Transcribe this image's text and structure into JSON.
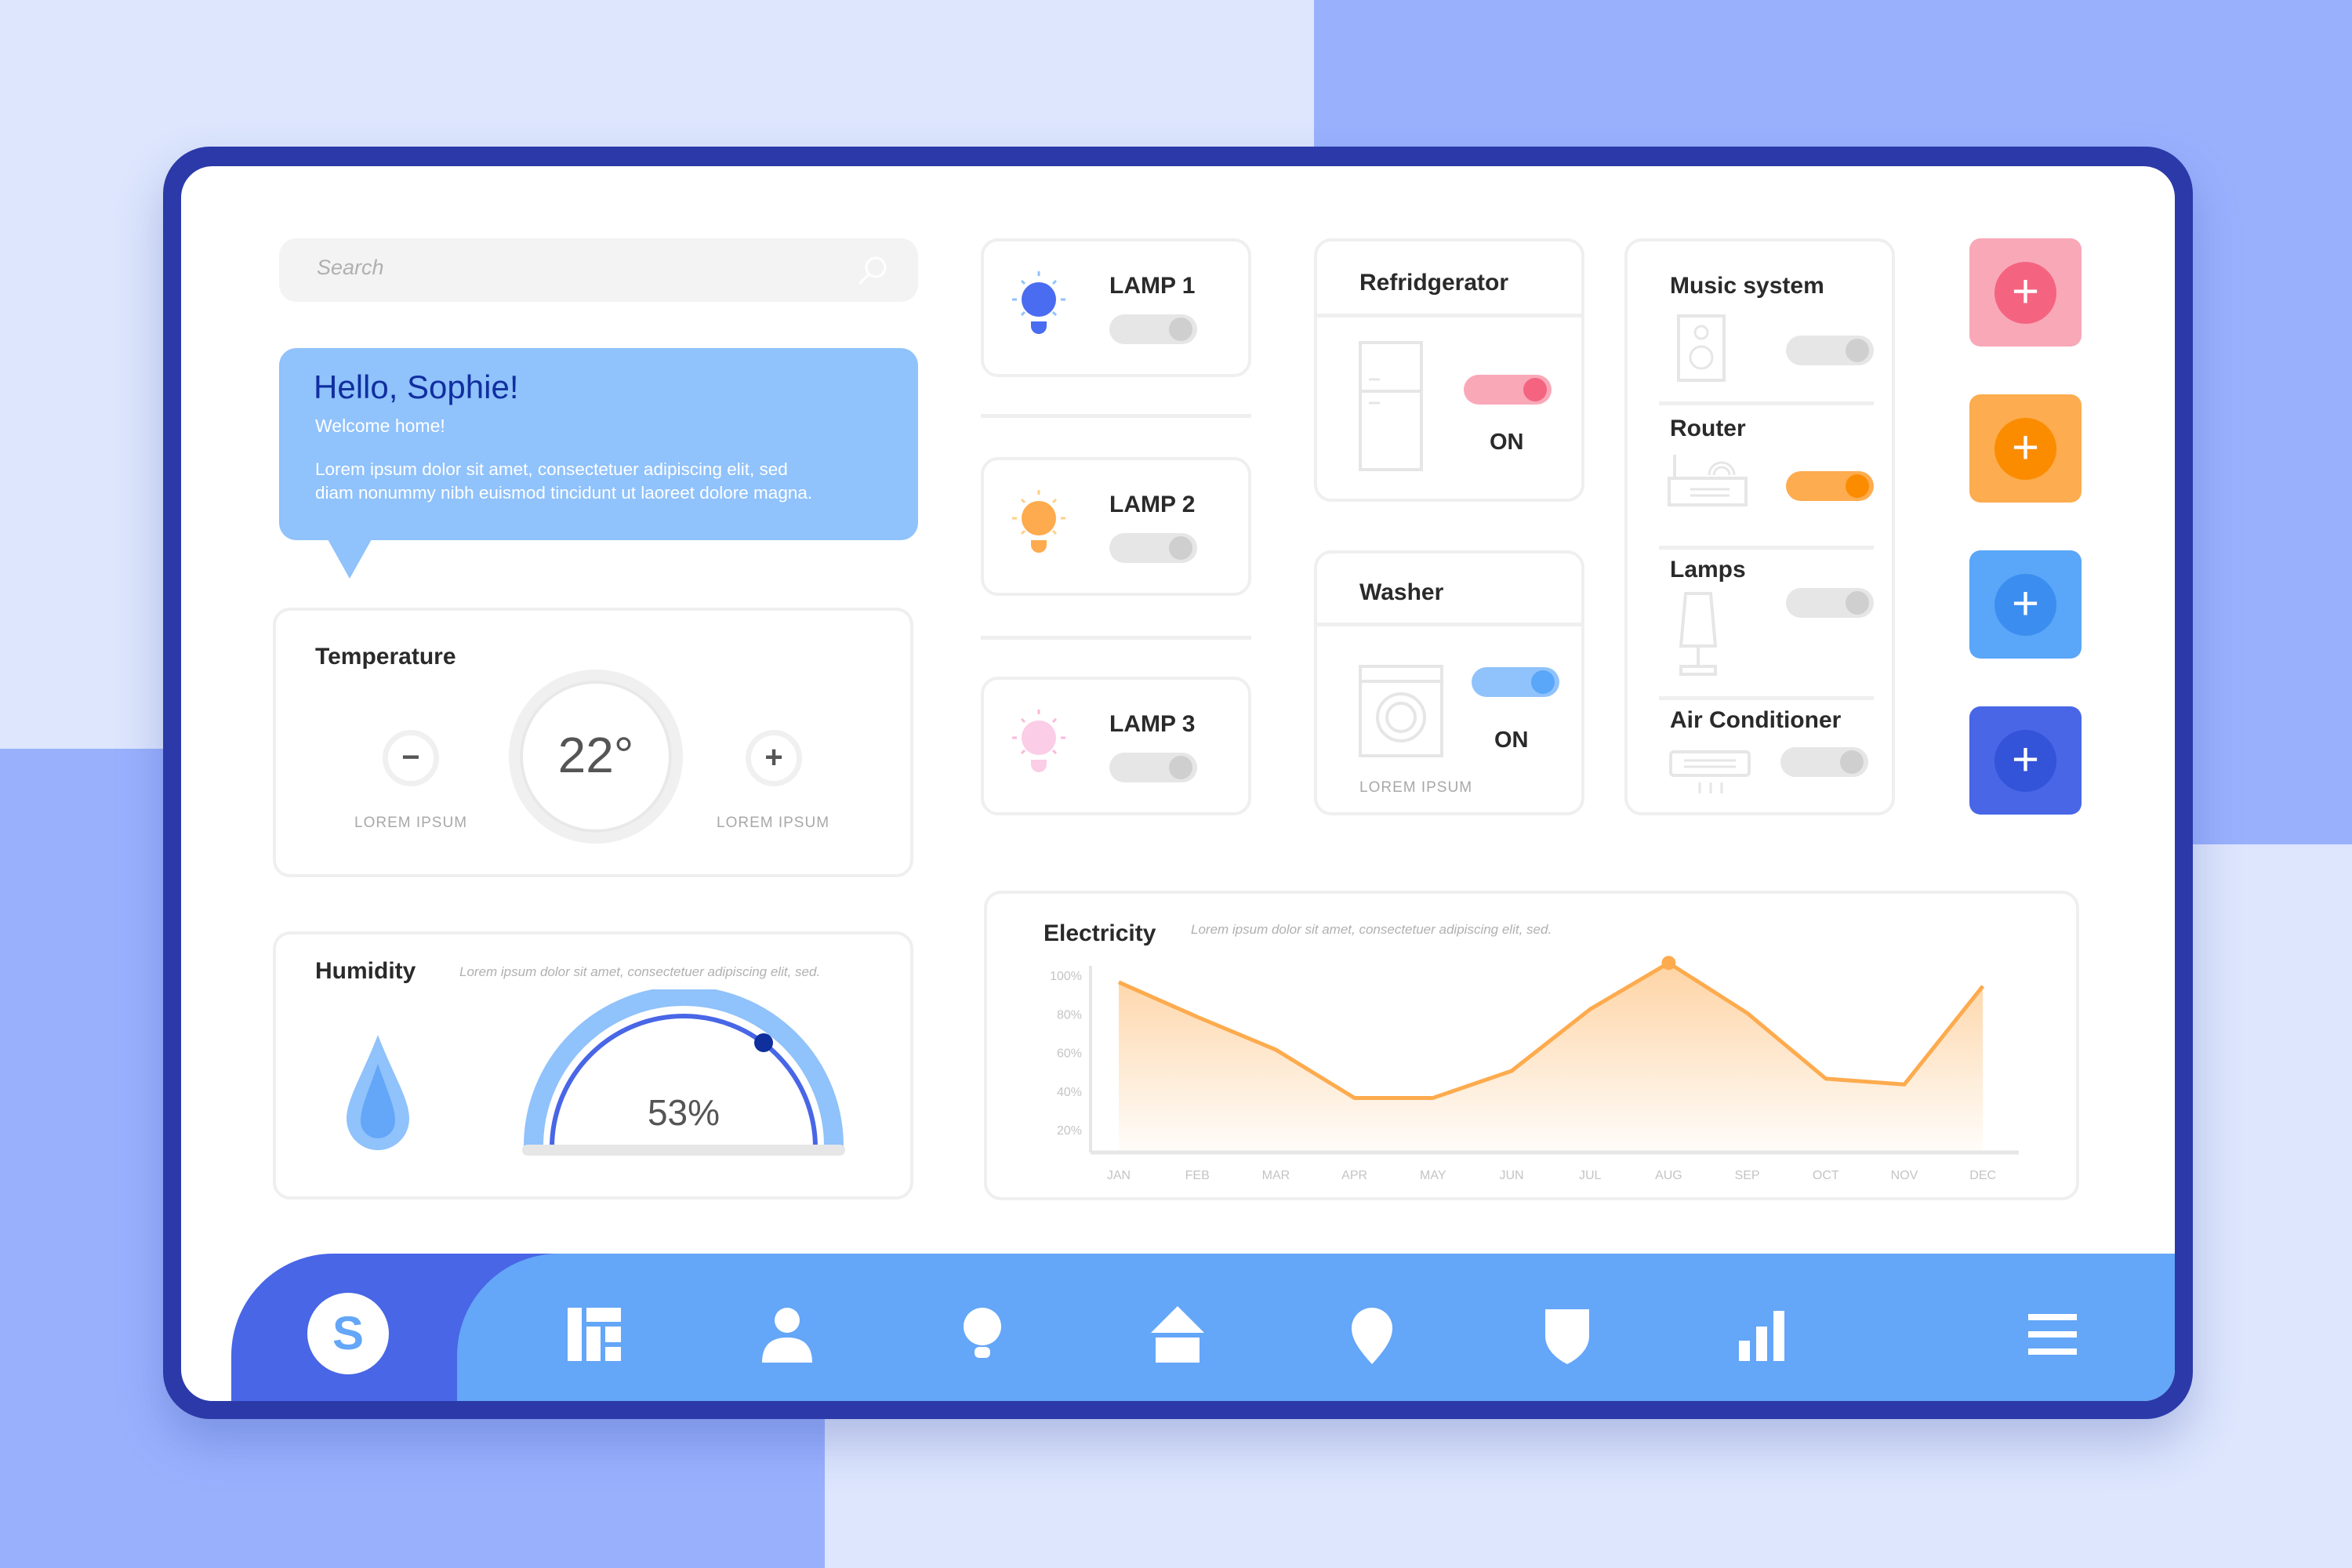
{
  "search": {
    "placeholder": "Search",
    "icon": "search-icon"
  },
  "greeting": {
    "title": "Hello, Sophie!",
    "subtitle": "Welcome home!",
    "body_line1": "Lorem ipsum dolor sit amet, consectetuer adipiscing elit, sed",
    "body_line2": "diam nonummy nibh euismod tincidunt ut laoreet dolore magna."
  },
  "temperature": {
    "title": "Temperature",
    "value": "22°",
    "minus": "−",
    "plus": "+",
    "left_label": "LOREM IPSUM",
    "right_label": "LOREM IPSUM"
  },
  "humidity": {
    "title": "Humidity",
    "description": "Lorem ipsum dolor sit amet, consectetuer adipiscing elit, sed.",
    "value": "53%",
    "percent": 53
  },
  "lamps": [
    {
      "label": "LAMP 1",
      "color": "#4a6cf0",
      "on": false
    },
    {
      "label": "LAMP 2",
      "color": "#fdab4e",
      "on": false
    },
    {
      "label": "LAMP 3",
      "color": "#fbcde6",
      "on": false
    }
  ],
  "refrigerator": {
    "title": "Refridgerator",
    "state": "ON",
    "toggle_color": "#f46480"
  },
  "washer": {
    "title": "Washer",
    "state": "ON",
    "caption": "LOREM IPSUM",
    "toggle_color": "#5aa6f8"
  },
  "devices": [
    {
      "label": "Music system",
      "on": false
    },
    {
      "label": "Router",
      "on": true,
      "color": "#fb8c00"
    },
    {
      "label": "Lamps",
      "on": false
    },
    {
      "label": "Air Conditioner",
      "on": false
    }
  ],
  "add_buttons": [
    {
      "label": "+",
      "bg": "#f9a8b8",
      "accent": "#f46480"
    },
    {
      "label": "+",
      "bg": "#fdac4f",
      "accent": "#fb8c00"
    },
    {
      "label": "+",
      "bg": "#5aa6f8",
      "accent": "#3b8ef0"
    },
    {
      "label": "+",
      "bg": "#4866e6",
      "accent": "#3353d8"
    }
  ],
  "chart_data": {
    "type": "area",
    "title": "Electricity",
    "subtitle": "Lorem ipsum dolor sit amet, consectetuer adipiscing elit, sed.",
    "categories": [
      "JAN",
      "FEB",
      "MAR",
      "APR",
      "MAY",
      "JUN",
      "JUL",
      "AUG",
      "SEP",
      "OCT",
      "NOV",
      "DEC"
    ],
    "values": [
      96,
      78,
      61,
      36,
      36,
      50,
      82,
      106,
      80,
      46,
      43,
      94
    ],
    "y_ticks": [
      "100%",
      "80%",
      "60%",
      "40%",
      "20%"
    ],
    "ylim": [
      10,
      110
    ],
    "highlight": "AUG",
    "color": "#fdab4e",
    "grid": false
  },
  "nav": {
    "avatar_letter": "S",
    "items": [
      "dashboard-icon",
      "user-icon",
      "bulb-icon",
      "home-icon",
      "location-icon",
      "shield-icon",
      "stats-icon",
      "menu-icon"
    ]
  }
}
